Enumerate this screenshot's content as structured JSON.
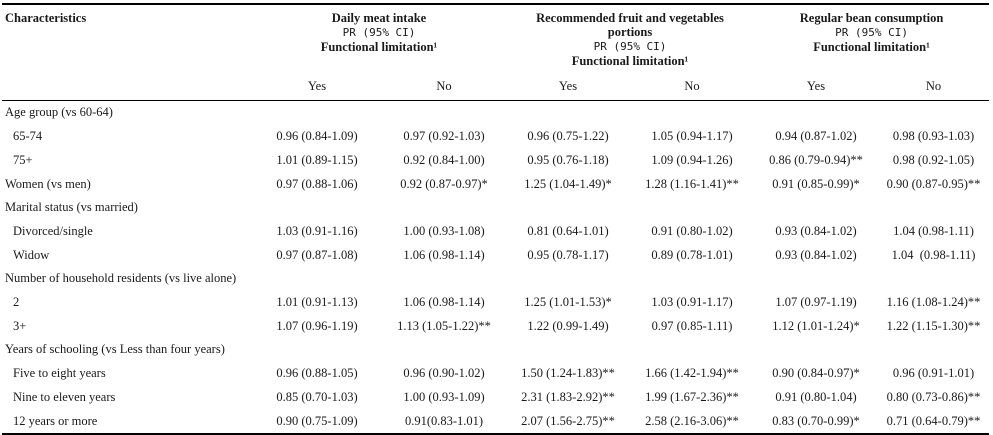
{
  "header": {
    "characteristics": "Characteristics",
    "groups": [
      {
        "title": "Daily meat intake",
        "pr": "PR (95% CI)",
        "limitation": "Functional limitation¹"
      },
      {
        "title": "Recommended fruit and vegetables portions",
        "pr": "PR (95% CI)",
        "limitation": "Functional limitation¹"
      },
      {
        "title": "Regular bean consumption",
        "pr": "PR (95% CI)",
        "limitation": "Functional limitation¹"
      }
    ],
    "yes": "Yes",
    "no": "No"
  },
  "sections": {
    "age": "Age group (vs 60-64)",
    "marital": "Marital status (vs married)",
    "household": "Number of household residents (vs live alone)",
    "schooling": "Years of schooling (vs Less than four years)"
  },
  "rows": [
    {
      "label": "65-74",
      "values": [
        "0.96 (0.84-1.09)",
        "0.97 (0.92-1.03)",
        "0.96 (0.75-1.22)",
        "1.05 (0.94-1.17)",
        "0.94 (0.87-1.02)",
        "0.98 (0.93-1.03)"
      ]
    },
    {
      "label": "75+",
      "values": [
        "1.01 (0.89-1.15)",
        "0.92 (0.84-1.00)",
        "0.95 (0.76-1.18)",
        "1.09 (0.94-1.26)",
        "0.86 (0.79-0.94)**",
        "0.98 (0.92-1.05)"
      ]
    },
    {
      "label": "Women (vs men)",
      "values": [
        "0.97 (0.88-1.06)",
        "0.92 (0.87-0.97)*",
        "1.25 (1.04-1.49)*",
        "1.28 (1.16-1.41)**",
        "0.91 (0.85-0.99)*",
        "0.90 (0.87-0.95)**"
      ]
    },
    {
      "label": "Divorced/single",
      "values": [
        "1.03 (0.91-1.16)",
        "1.00 (0.93-1.08)",
        "0.81 (0.64-1.01)",
        "0.91 (0.80-1.02)",
        "0.93 (0.84-1.02)",
        "1.04 (0.98-1.11)"
      ]
    },
    {
      "label": "Widow",
      "values": [
        "0.97 (0.87-1.08)",
        "1.06 (0.98-1.14)",
        "0.95 (0.78-1.17)",
        "0.89 (0.78-1.01)",
        "0.93 (0.84-1.02)",
        "1.04  (0.98-1.11)"
      ]
    },
    {
      "label": "2",
      "values": [
        "1.01 (0.91-1.13)",
        "1.06 (0.98-1.14)",
        "1.25 (1.01-1.53)*",
        "1.03 (0.91-1.17)",
        "1.07 (0.97-1.19)",
        "1.16 (1.08-1.24)**"
      ]
    },
    {
      "label": "3+",
      "values": [
        "1.07 (0.96-1.19)",
        "1.13 (1.05-1.22)**",
        "1.22 (0.99-1.49)",
        "0.97 (0.85-1.11)",
        "1.12 (1.01-1.24)*",
        "1.22 (1.15-1.30)**"
      ]
    },
    {
      "label": "Five to eight years",
      "values": [
        "0.96 (0.88-1.05)",
        "0.96 (0.90-1.02)",
        "1.50 (1.24-1.83)**",
        "1.66 (1.42-1.94)**",
        "0.90 (0.84-0.97)*",
        "0.96 (0.91-1.01)"
      ]
    },
    {
      "label": "Nine to eleven years",
      "values": [
        "0.85 (0.70-1.03)",
        "1.00 (0.93-1.09)",
        "2.31 (1.83-2.92)**",
        "1.99 (1.67-2.36)**",
        "0.91 (0.80-1.04)",
        "0.80 (0.73-0.86)**"
      ]
    },
    {
      "label": "12 years or more",
      "values": [
        "0.90 (0.75-1.09)",
        "0.91(0.83-1.01)",
        "2.07 (1.56-2.75)**",
        "2.58 (2.16-3.06)**",
        "0.83 (0.70-0.99)*",
        "0.71 (0.64-0.79)**"
      ]
    }
  ]
}
